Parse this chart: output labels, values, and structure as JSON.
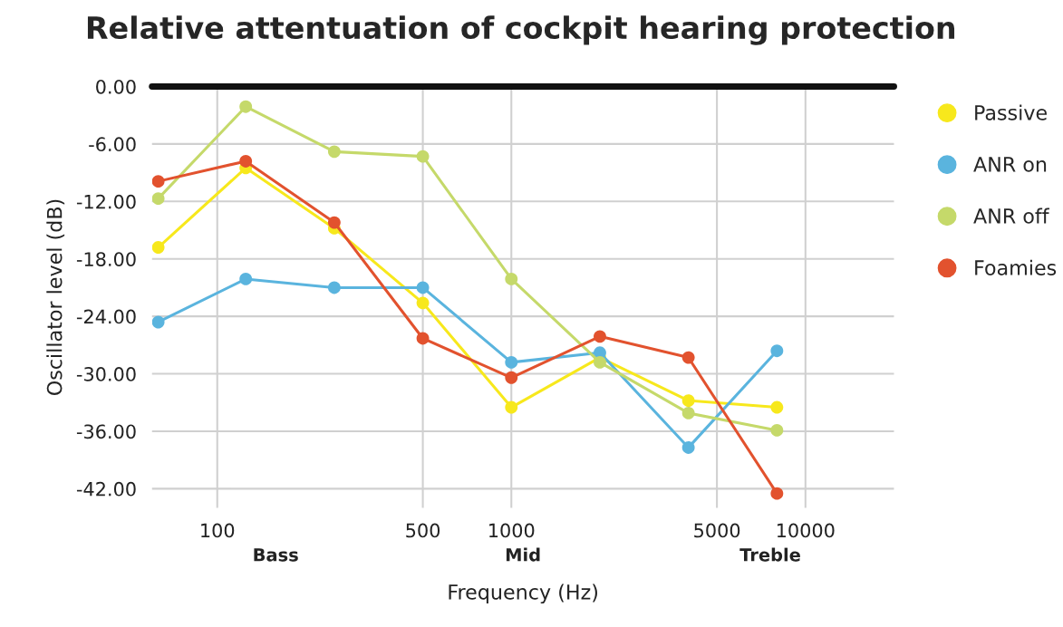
{
  "chart_data": {
    "type": "line",
    "title": "Relative attentuation of cockpit hearing protection",
    "xlabel": "Frequency (Hz)",
    "ylabel": "Oscillator level (dB)",
    "x": [
      63,
      125,
      250,
      500,
      1000,
      2000,
      4000,
      8000
    ],
    "series": [
      {
        "name": "Passive",
        "color": "#f7e81c",
        "values": [
          -16.8,
          -8.5,
          -14.8,
          -22.6,
          -33.5,
          -28.3,
          -32.8,
          -33.5
        ]
      },
      {
        "name": "ANR on",
        "color": "#5ab4de",
        "values": [
          -24.6,
          -20.1,
          -21.0,
          -21.0,
          -28.8,
          -27.8,
          -37.7,
          -27.6
        ]
      },
      {
        "name": "ANR off",
        "color": "#c5d96a",
        "values": [
          -11.7,
          -2.1,
          -6.8,
          -7.3,
          -20.1,
          -28.8,
          -34.1,
          -35.9
        ]
      },
      {
        "name": "Foamies",
        "color": "#e2522e",
        "values": [
          -9.9,
          -7.8,
          -14.2,
          -26.3,
          -30.4,
          -26.1,
          -28.3,
          -42.5
        ]
      }
    ],
    "log": "x",
    "xlim": [
      60,
      20000
    ],
    "xticks": [
      100,
      500,
      1000,
      5000,
      10000
    ],
    "ylim": [
      -44,
      0
    ],
    "yticks": [
      {
        "value": 0,
        "label": "0.00"
      },
      {
        "value": -6,
        "label": "-6.00"
      },
      {
        "value": -12,
        "label": "-12.00"
      },
      {
        "value": -18,
        "label": "-18.00"
      },
      {
        "value": -24,
        "label": "-24.00"
      },
      {
        "value": -30,
        "label": "-30.00"
      },
      {
        "value": -36,
        "label": "-36.00"
      },
      {
        "value": -42,
        "label": "-42.00"
      }
    ],
    "ref_lines": [
      {
        "axis": "y",
        "value": 0,
        "color": "#111111"
      }
    ],
    "annotations": [
      "Bass",
      "Mid",
      "Treble"
    ],
    "grid": true,
    "legend": "top right",
    "marker": "circle",
    "line_style": "solid"
  }
}
